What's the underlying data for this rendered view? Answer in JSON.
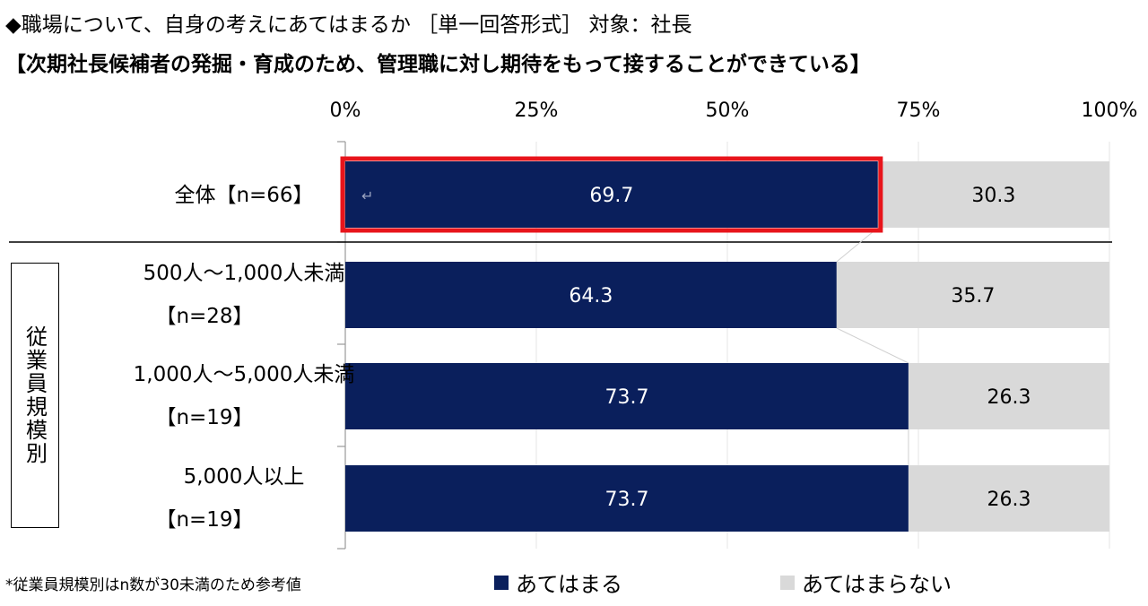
{
  "header": {
    "line1": "◆職場について、自身の考えにあてはまるか ［単一回答形式］ 対象：社長",
    "line2": "【次期社長候補者の発掘・育成のため、管理職に対し期待をもって接することができている】"
  },
  "group_label": "従業員規模別",
  "footnote": "*従業員規模別はn数が30未満のため参考値",
  "highlight_marker": "↵",
  "colors": {
    "yes": "#0a1f5c",
    "no": "#d9d9d9",
    "highlight": "#e8141b"
  },
  "chart_data": {
    "type": "bar",
    "orientation": "horizontal",
    "stacked": true,
    "xlim": [
      0,
      100
    ],
    "x_ticks": [
      "0%",
      "25%",
      "50%",
      "75%",
      "100%"
    ],
    "legend_position": "bottom",
    "categories": [
      [
        "全体【n=66】"
      ],
      [
        "500人～1,000人未満",
        "【n=28】"
      ],
      [
        "1,000人～5,000人未満",
        "【n=19】"
      ],
      [
        "5,000人以上",
        "【n=19】"
      ]
    ],
    "series": [
      {
        "name": "あてはまる",
        "values": [
          69.7,
          64.3,
          73.7,
          73.7
        ],
        "labels": [
          "69.7",
          "64.3",
          "73.7",
          "73.7"
        ]
      },
      {
        "name": "あてはまらない",
        "values": [
          30.3,
          35.7,
          26.3,
          26.3
        ],
        "labels": [
          "30.3",
          "35.7",
          "26.3",
          "26.3"
        ]
      }
    ],
    "highlighted_index": 0
  }
}
